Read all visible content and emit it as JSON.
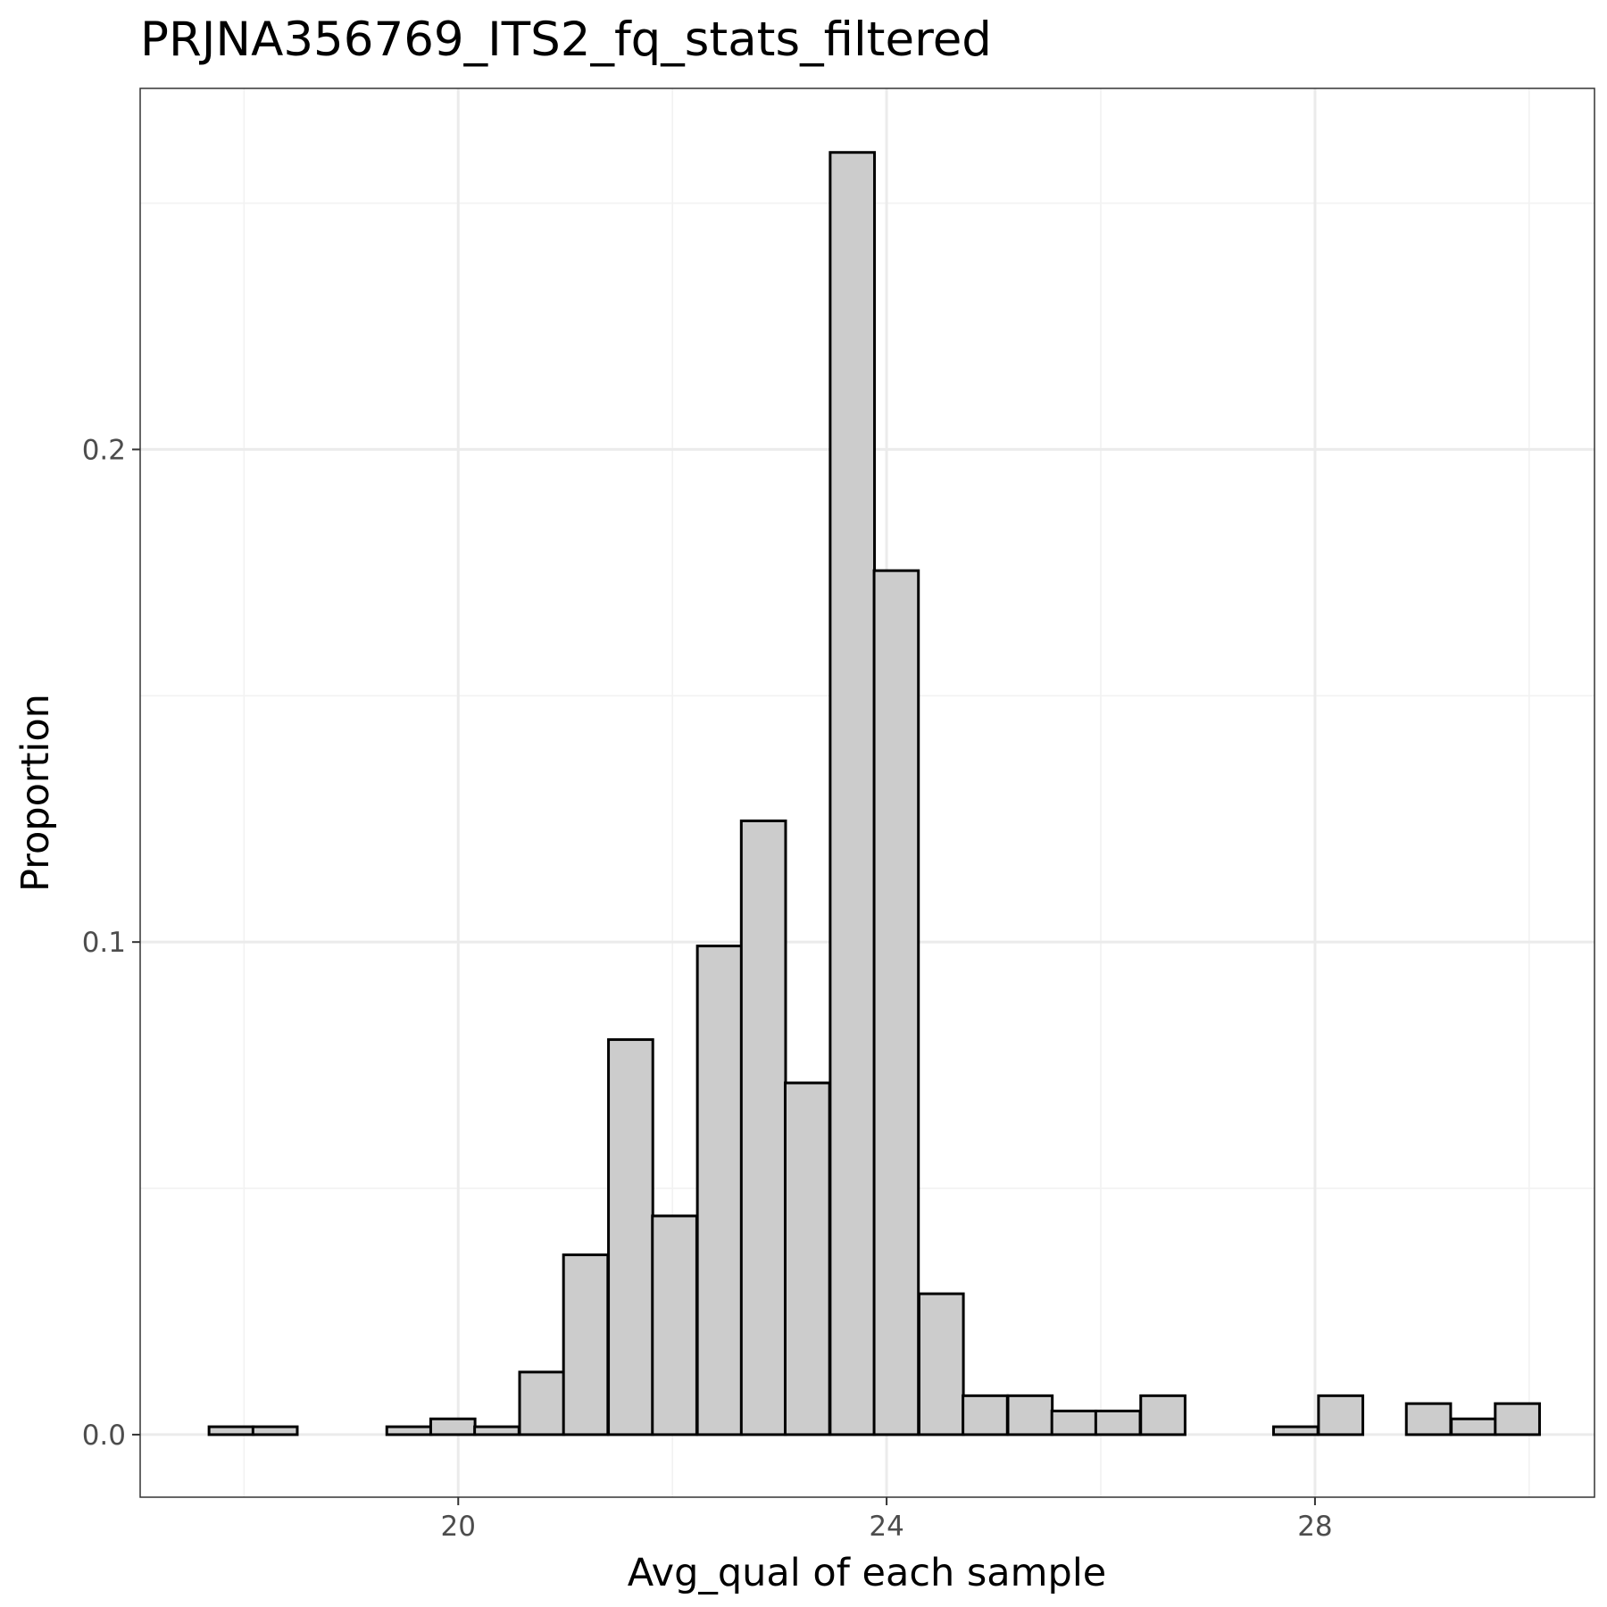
{
  "chart_data": {
    "type": "bar",
    "title": "PRJNA356769_ITS2_fq_stats_filtered",
    "xlabel": "Avg_qual of each sample",
    "ylabel": "Proportion",
    "xlim": [
      17.03,
      30.61
    ],
    "ylim": [
      -0.0127,
      0.2733
    ],
    "x_ticks": [
      20,
      24,
      28
    ],
    "x_tick_labels": [
      "20",
      "24",
      "28"
    ],
    "y_ticks": [
      0.0,
      0.1,
      0.2
    ],
    "y_tick_labels": [
      "0.0",
      "0.1",
      "0.2"
    ],
    "bin_width": 0.414,
    "bin_centers": [
      17.88,
      18.29,
      18.71,
      19.12,
      19.54,
      19.95,
      20.36,
      20.78,
      21.19,
      21.61,
      22.02,
      22.44,
      22.85,
      23.26,
      23.68,
      24.09,
      24.51,
      24.92,
      25.34,
      25.75,
      26.16,
      26.58,
      26.99,
      27.41,
      27.82,
      28.24,
      28.65,
      29.06,
      29.48,
      29.89
    ],
    "values": [
      0.0016,
      0.0016,
      0.0,
      0.0,
      0.0016,
      0.0032,
      0.0016,
      0.0127,
      0.0365,
      0.0802,
      0.0444,
      0.0992,
      0.1246,
      0.0714,
      0.2603,
      0.1754,
      0.0286,
      0.0079,
      0.0079,
      0.0048,
      0.0048,
      0.0079,
      0.0,
      0.0,
      0.0016,
      0.0079,
      0.0,
      0.0063,
      0.0032,
      0.0063
    ],
    "bar_fill": "#cccccc",
    "bar_outline": "#000000",
    "panel_border": "#333333",
    "grid_major": "#ebebeb",
    "grid_minor": "#f2f2f2",
    "grid": true
  }
}
